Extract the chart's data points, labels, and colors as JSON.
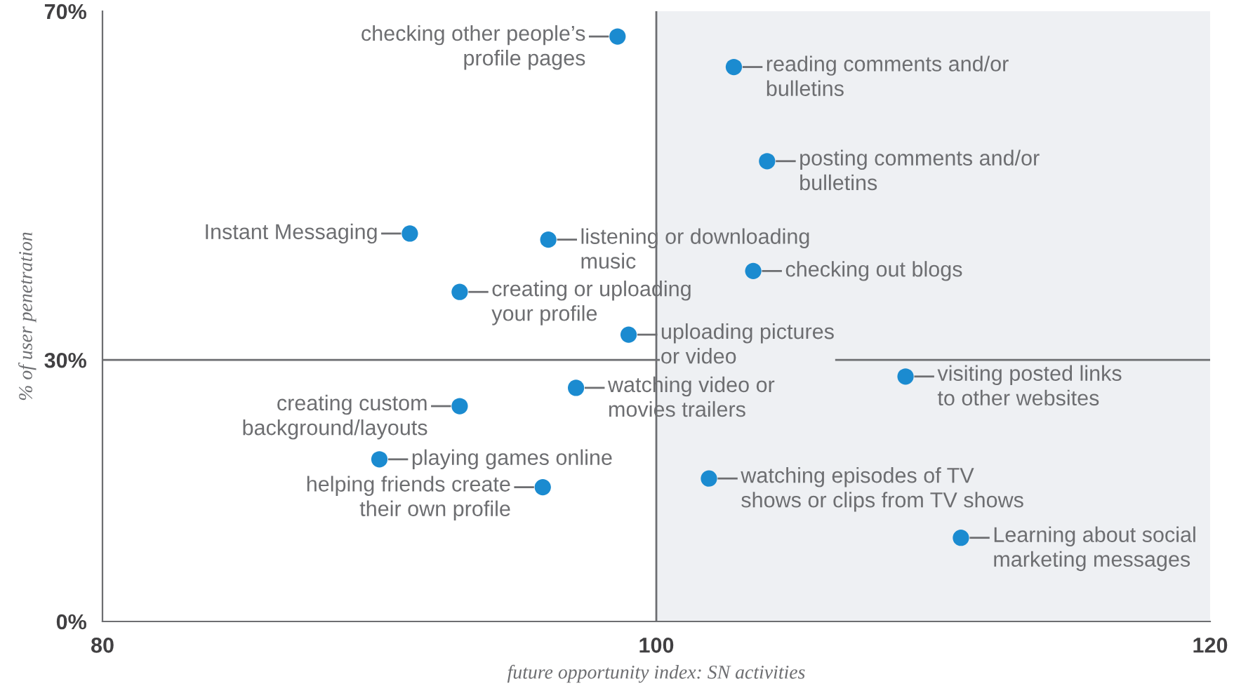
{
  "chart_data": {
    "type": "scatter",
    "xlabel": "future opportunity index: SN activities",
    "ylabel": "% of user penetration",
    "x": [
      98.6,
      102.8,
      104.0,
      91.1,
      96.1,
      103.5,
      92.9,
      99.0,
      109.0,
      97.1,
      92.9,
      90.0,
      95.9,
      101.9,
      111.0
    ],
    "series": [
      {
        "color": "#1b8bd0",
        "values": [
          67.1,
          63.6,
          52.8,
          44.5,
          43.8,
          40.2,
          37.8,
          32.9,
          28.1,
          26.8,
          24.7,
          18.6,
          15.4,
          16.4,
          9.6
        ]
      }
    ],
    "marker": "circle",
    "grid": false,
    "legend": false,
    "xlim": [
      80,
      120
    ],
    "ylim": [
      0,
      70
    ],
    "xticks": [
      80,
      100,
      120
    ],
    "yticks": [
      {
        "value": 0,
        "label": "0%"
      },
      {
        "value": 30,
        "label": "30%"
      },
      {
        "value": 70,
        "label": "70%"
      }
    ],
    "ref_lines": [
      {
        "axis": "y",
        "value": 30,
        "color": "#6d6e71"
      },
      {
        "axis": "x",
        "value": 100,
        "color": "#6d6e71"
      }
    ],
    "bands": [
      {
        "axis": "x",
        "from": 100,
        "to": 120,
        "color": "#eef0f3"
      }
    ],
    "annotations": [
      {
        "text": "checking other people’s\nprofile pages",
        "x": 98.6,
        "y": 67.1
      },
      {
        "text": "reading comments and/or\nbulletins",
        "x": 102.8,
        "y": 63.6
      },
      {
        "text": "posting comments and/or\nbulletins",
        "x": 104.0,
        "y": 52.8
      },
      {
        "text": "Instant Messaging",
        "x": 91.1,
        "y": 44.5
      },
      {
        "text": "listening or downloading\nmusic",
        "x": 96.1,
        "y": 43.8
      },
      {
        "text": "checking out blogs",
        "x": 103.5,
        "y": 40.2
      },
      {
        "text": "creating or uploading\nyour profile",
        "x": 92.9,
        "y": 37.8
      },
      {
        "text": "uploading pictures\nor video",
        "x": 99.0,
        "y": 32.9
      },
      {
        "text": "visiting posted links\nto other websites",
        "x": 109.0,
        "y": 28.1
      },
      {
        "text": "watching video or\nmovies trailers",
        "x": 97.1,
        "y": 26.8
      },
      {
        "text": "creating custom\nbackground/layouts",
        "x": 92.9,
        "y": 24.7
      },
      {
        "text": "playing games online",
        "x": 90.0,
        "y": 18.6
      },
      {
        "text": "helping friends create\ntheir own profile",
        "x": 95.9,
        "y": 15.4
      },
      {
        "text": "watching episodes of TV\nshows or clips from TV shows",
        "x": 101.9,
        "y": 16.4
      },
      {
        "text": "Learning about social\nmarketing messages",
        "x": 111.0,
        "y": 9.6
      }
    ]
  }
}
